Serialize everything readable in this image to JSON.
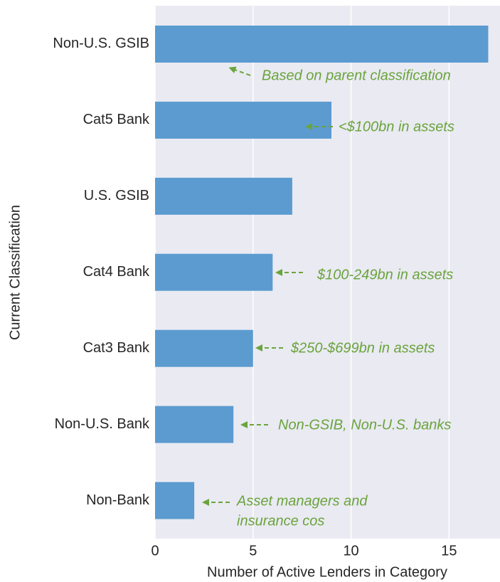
{
  "chart_data": {
    "type": "barh",
    "categories": [
      "Non-U.S. GSIB",
      "Cat5 Bank",
      "U.S. GSIB",
      "Cat4 Bank",
      "Cat3 Bank",
      "Non-U.S. Bank",
      "Non-Bank"
    ],
    "values": [
      17,
      9,
      7,
      6,
      5,
      4,
      2
    ],
    "color": "#5b9bd0",
    "xlim": [
      0,
      17.6
    ],
    "xticks": [
      0,
      5,
      10,
      15
    ],
    "grid": true,
    "xlabel": "Number of Active Lenders in Category",
    "ylabel": "Current Classification",
    "annotation_color": "#6aa43c",
    "annotations": [
      [
        "Based on parent classification"
      ],
      [
        "<$100bn in assets"
      ],
      [
        "$100-249bn in assets"
      ],
      [
        "$250-$699bn in assets"
      ],
      [
        "Non-GSIB, Non-U.S. banks"
      ],
      [
        "Asset managers and",
        "insurance cos"
      ]
    ]
  }
}
